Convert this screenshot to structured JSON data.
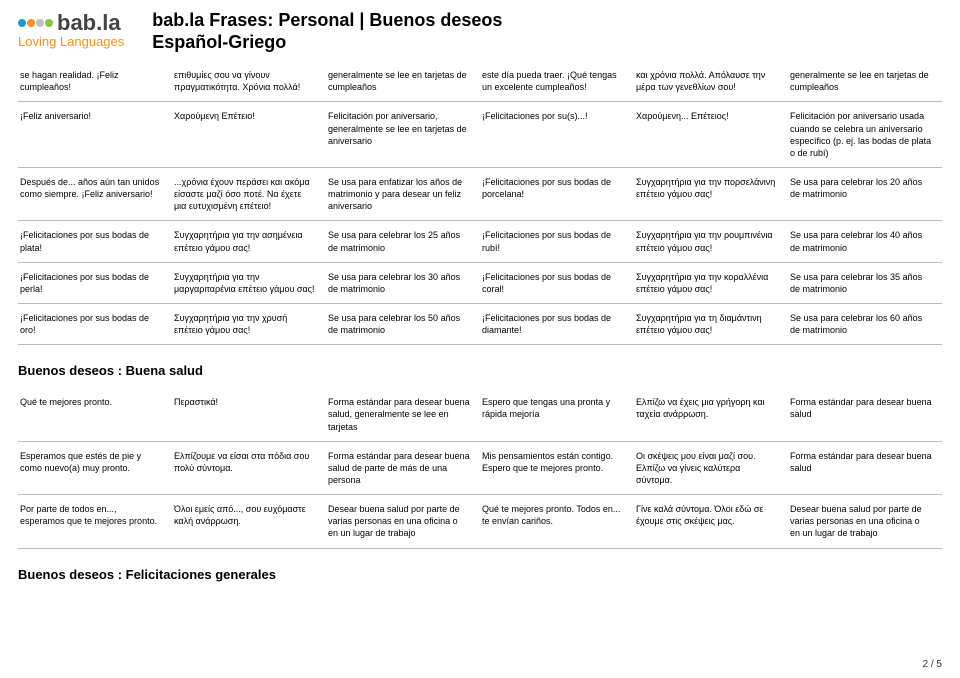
{
  "header": {
    "logo_text": "bab.la",
    "logo_sub": "Loving Languages",
    "dot_colors": [
      "#1e9bd6",
      "#f7931e",
      "#c0c0c0",
      "#8cc63f"
    ],
    "title_line1": "bab.la Frases: Personal | Buenos deseos",
    "title_line2": "Español-Griego"
  },
  "rows1": [
    [
      "se hagan realidad. ¡Feliz cumpleaños!",
      "επιθυμίες σου να γίνουν πραγματικότητα. Χρόνια πολλά!",
      "generalmente se lee en tarjetas de cumpleaños",
      "este día pueda traer. ¡Qué tengas un excelente cumpleaños!",
      "και χρόνια πολλά. Απόλαυσε την μέρα των γενεθλίων σου!",
      "generalmente se lee en tarjetas de cumpleaños"
    ],
    [
      "¡Feliz aniversario!",
      "Χαρούμενη Επέτειο!",
      "Felicitación por aniversario, generalmente se lee en tarjetas de aniversario",
      "¡Felicitaciones por su(s)...!",
      "Χαρούμενη... Επέτειος!",
      "Felicitación por aniversario usada cuando se celebra un aniversario específico (p. ej. las bodas de plata o de rubí)"
    ],
    [
      "Después de... años aún tan unidos como siempre. ¡Feliz aniversario!",
      "...χρόνια έχουν περάσει και ακόμα είσαστε μαζί όσο ποτέ. Να έχετε μια ευτυχισμένη επέτειο!",
      "Se usa para enfatizar los años de matrimonio y para desear un feliz aniversario",
      "¡Felicitaciones por sus bodas de porcelana!",
      "Συγχαρητήρια για την πορσελάνινη επέτειο γάμου σας!",
      "Se usa para celebrar los 20 años de matrimonio"
    ],
    [
      "¡Felicitaciones por sus bodas de plata!",
      "Συγχαρητήρια για την ασημένεια επέτειο γάμου σας!",
      "Se usa para celebrar los 25 años de matrimonio",
      "¡Felicitaciones por sus bodas de rubí!",
      "Συγχαρητήρια για την ρουμπινένια επέτειο γάμου σας!",
      "Se usa para celebrar los 40 años de matrimonio"
    ],
    [
      "¡Felicitaciones por sus bodas de perla!",
      "Συγχαρητήρια για την μαργαριταρένια επέτειο γάμου σας!",
      "Se usa para celebrar los 30 años de matrimonio",
      "¡Felicitaciones por sus bodas de coral!",
      "Συγχαρητήρια για την κοραλλένια επέτειο γάμου σας!",
      "Se usa para celebrar los 35 años de matrimonio"
    ],
    [
      "¡Felicitaciones por sus bodas de oro!",
      "Συγχαρητήρια για την χρυσή επέτειο γάμου σας!",
      "Se usa para celebrar los 50 años de matrimonio",
      "¡Felicitaciones por sus bodas de diamante!",
      "Συγχαρητήρια για τη διαμάντινη επέτειο γάμου σας!",
      "Se usa para celebrar los 60 años de matrimonio"
    ]
  ],
  "section2": "Buenos deseos : Buena salud",
  "rows2": [
    [
      "Qué te mejores pronto.",
      "Περαστικά!",
      "Forma estándar para desear buena salud, generalmente se lee en tarjetas",
      "Espero que tengas una pronta y rápida mejoría",
      "Ελπίζω να έχεις μια γρήγορη και ταχεία ανάρρωση.",
      "Forma estándar para desear buena salud"
    ],
    [
      "Esperamos que estés de pie y como nuevo(a) muy pronto.",
      "Ελπίζουμε να είσαι στα πόδια σου πολύ σύντομα.",
      "Forma estándar para desear buena salud de parte de más de una persona",
      "Mis pensamientos están contigo. Espero que te mejores pronto.",
      "Οι σκέψεις μου είναι μαζί σου. Ελπίζω να γίνεις καλύτερα σύντομα.",
      "Forma estándar para desear buena salud"
    ],
    [
      "Por parte de todos en..., esperamos que te mejores pronto.",
      "Όλοι εμείς από..., σου ευχόμαστε καλή ανάρρωση.",
      "Desear buena salud por parte de varias personas en una oficina o en un lugar de trabajo",
      "Qué te mejores pronto. Todos en... te envían cariños.",
      "Γίνε καλά σύντομα. Όλοι εδώ σε έχουμε στις σκέψεις μας.",
      "Desear buena salud por parte de varias personas en una oficina o en un lugar de trabajo"
    ]
  ],
  "section3": "Buenos deseos : Felicitaciones generales",
  "pagenum": "2 / 5"
}
